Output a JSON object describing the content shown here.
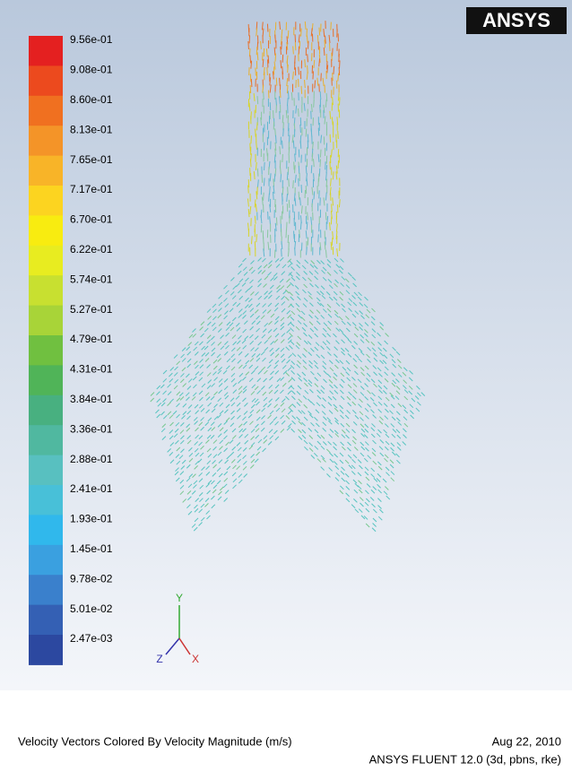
{
  "logo": "ANSYS",
  "colorbar": {
    "labels": [
      "9.56e-01",
      "9.08e-01",
      "8.60e-01",
      "8.13e-01",
      "7.65e-01",
      "7.17e-01",
      "6.70e-01",
      "6.22e-01",
      "5.74e-01",
      "5.27e-01",
      "4.79e-01",
      "4.31e-01",
      "3.84e-01",
      "3.36e-01",
      "2.88e-01",
      "2.41e-01",
      "1.93e-01",
      "1.45e-01",
      "9.78e-02",
      "5.01e-02",
      "2.47e-03"
    ]
  },
  "axes": {
    "y": "Y",
    "z": "Z",
    "x": "X"
  },
  "footer": {
    "title": "Velocity Vectors Colored By Velocity Magnitude (m/s)",
    "date": "Aug 22, 2010",
    "software": "ANSYS FLUENT 12.0 (3d, pbns, rke)"
  }
}
